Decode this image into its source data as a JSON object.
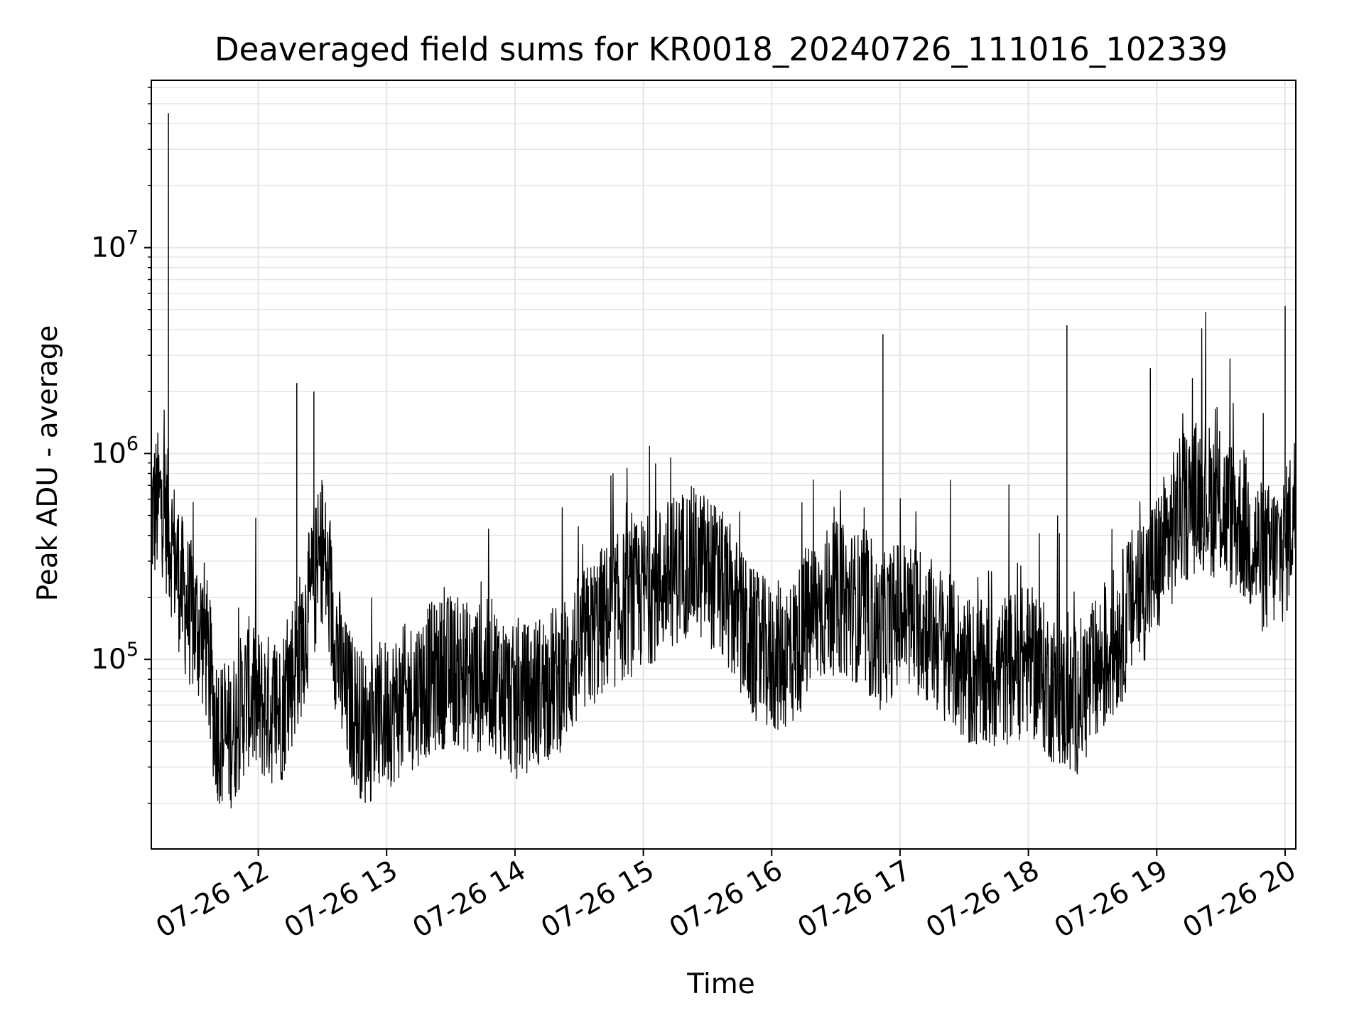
{
  "chart_data": {
    "type": "line",
    "title": "Deaveraged field sums for KR0018_20240726_111016_102339",
    "xlabel": "Time",
    "ylabel": "Peak ADU - average",
    "yscale": "log",
    "grid": true,
    "line_color": "#000000",
    "grid_color": "#e5e5e5",
    "xlim": [
      "2024-07-26 11:10",
      "2024-07-26 20:05"
    ],
    "ylim": [
      12000,
      65000000
    ],
    "x_ticks": [
      "07-26 12",
      "07-26 13",
      "07-26 14",
      "07-26 15",
      "07-26 16",
      "07-26 17",
      "07-26 18",
      "07-26 19",
      "07-26 20"
    ],
    "y_ticks": [
      {
        "base": "10",
        "exp": "5"
      },
      {
        "base": "10",
        "exp": "6"
      },
      {
        "base": "10",
        "exp": "7"
      }
    ],
    "series": [
      {
        "x": [
          "2024-07-26 11:10",
          "2024-07-26 11:15",
          "2024-07-26 11:20",
          "2024-07-26 11:25",
          "2024-07-26 11:30",
          "2024-07-26 11:35",
          "2024-07-26 11:40",
          "2024-07-26 11:45",
          "2024-07-26 11:50",
          "2024-07-26 11:55",
          "2024-07-26 12:00",
          "2024-07-26 12:10",
          "2024-07-26 12:20",
          "2024-07-26 12:30",
          "2024-07-26 12:40",
          "2024-07-26 12:50",
          "2024-07-26 13:00",
          "2024-07-26 13:10",
          "2024-07-26 13:20",
          "2024-07-26 13:30",
          "2024-07-26 13:40",
          "2024-07-26 13:50",
          "2024-07-26 14:00",
          "2024-07-26 14:10",
          "2024-07-26 14:20",
          "2024-07-26 14:30",
          "2024-07-26 14:40",
          "2024-07-26 14:50",
          "2024-07-26 15:00",
          "2024-07-26 15:10",
          "2024-07-26 15:20",
          "2024-07-26 15:30",
          "2024-07-26 15:40",
          "2024-07-26 15:50",
          "2024-07-26 16:00",
          "2024-07-26 16:10",
          "2024-07-26 16:20",
          "2024-07-26 16:30",
          "2024-07-26 16:40",
          "2024-07-26 16:50",
          "2024-07-26 17:00",
          "2024-07-26 17:10",
          "2024-07-26 17:20",
          "2024-07-26 17:30",
          "2024-07-26 17:40",
          "2024-07-26 17:50",
          "2024-07-26 18:00",
          "2024-07-26 18:10",
          "2024-07-26 18:20",
          "2024-07-26 18:30",
          "2024-07-26 18:40",
          "2024-07-26 18:50",
          "2024-07-26 19:00",
          "2024-07-26 19:10",
          "2024-07-26 19:20",
          "2024-07-26 19:30",
          "2024-07-26 19:40",
          "2024-07-26 19:50",
          "2024-07-26 20:00",
          "2024-07-26 20:05"
        ],
        "y": [
          500000,
          600000,
          350000,
          200000,
          150000,
          130000,
          50000,
          40000,
          50000,
          70000,
          60000,
          55000,
          120000,
          350000,
          70000,
          45000,
          55000,
          65000,
          80000,
          90000,
          80000,
          85000,
          60000,
          70000,
          80000,
          110000,
          150000,
          180000,
          210000,
          250000,
          300000,
          280000,
          200000,
          120000,
          100000,
          110000,
          170000,
          200000,
          180000,
          130000,
          170000,
          150000,
          120000,
          90000,
          80000,
          90000,
          100000,
          75000,
          60000,
          80000,
          120000,
          200000,
          280000,
          500000,
          650000,
          550000,
          450000,
          300000,
          350000,
          600000
        ]
      }
    ],
    "spikes": [
      {
        "x": "2024-07-26 11:18",
        "y": 45000000
      },
      {
        "x": "2024-07-26 12:18",
        "y": 2200000
      },
      {
        "x": "2024-07-26 12:26",
        "y": 2000000
      },
      {
        "x": "2024-07-26 16:52",
        "y": 3800000
      },
      {
        "x": "2024-07-26 18:18",
        "y": 4200000
      },
      {
        "x": "2024-07-26 18:57",
        "y": 2600000
      },
      {
        "x": "2024-07-26 20:00",
        "y": 5200000
      }
    ]
  }
}
